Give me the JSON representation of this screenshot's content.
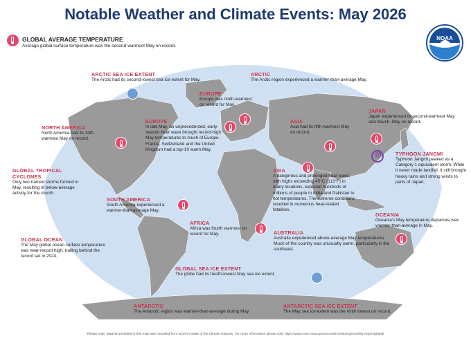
{
  "title": "Notable Weather and Climate Events: May 2026",
  "logo_text": "NOAA",
  "global_avg": {
    "heading": "GLOBAL AVERAGE TEMPERATURE",
    "text": "Average global surface temperature was the second-warmest May on record."
  },
  "labels": {
    "arctic_sea_ice": {
      "heading": "ARCTIC SEA ICE EXTENT",
      "text": "The Arctic had its second-lowest sea ice extent for May."
    },
    "arctic": {
      "heading": "ARCTIC",
      "text": "The Arctic region experienced a warmer-than-average May."
    },
    "europe_top": {
      "heading": "EUROPE",
      "text": "Europe was ninth-warmest on record for May."
    },
    "europe_heat": {
      "heading": "EUROPE",
      "text": "In late May, an unprecedented, early-season heat wave brought record-high May temperatures to much of Europe. France, Switzerland and the United Kingdom had a top-10 warm May."
    },
    "north_america": {
      "heading": "NORTH AMERICA",
      "text": "North America had its 10th-warmest May on record."
    },
    "asia_top": {
      "heading": "ASIA",
      "text": "Asia had its fifth-warmest May on record."
    },
    "japan": {
      "heading": "JAPAN",
      "text": "Japan experienced its second-warmest May and March–May on record."
    },
    "typhoon": {
      "heading": "TYPHOON JANGMI",
      "text": "Typhoon Jangmi peaked as a Category 1 equivalent storm. While it never made landfall, it still brought heavy rains and strong winds to parts of Japan."
    },
    "tropical": {
      "heading": "GLOBAL TROPICAL CYCLONES",
      "text": "Only two named storms formed in May, resulting in below-average activity for the month."
    },
    "asia_heat": {
      "heading": "ASIA",
      "text": "A dangerous and prolonged heat wave, with highs exceeding 45°C (113°F) in many locations, exposed hundreds of millions of people in India and Pakistan to hot temperatures. The extreme conditions resulted in numerous heat-related fatalities."
    },
    "south_america": {
      "heading": "SOUTH AMERICA",
      "text": "South America experienced a warmer-than-average May."
    },
    "africa": {
      "heading": "AFRICA",
      "text": "Africa was fourth warmest on record for May."
    },
    "oceania": {
      "heading": "OCEANIA",
      "text": "Oceania's May temperature departure was warmer-than-average in May."
    },
    "global_ocean": {
      "heading": "GLOBAL OCEAN",
      "text": "The May global ocean surface temperature was near-record high, trailing behind the record set in 2024."
    },
    "australia": {
      "heading": "AUSTRALIA",
      "text": "Australia experienced above-average May temperatures. Much of the country was unusually warm, particularly in the southeast."
    },
    "global_sea_ice": {
      "heading": "GLOBAL SEA ICE EXTENT",
      "text": "The globe had its fourth-lowest May sea ice extent."
    },
    "antarctic": {
      "heading": "ANTARCTIC",
      "text": "The Antarctic region was warmer-than-average during May."
    },
    "antarctic_sea_ice": {
      "heading": "ANTARCTIC SEA ICE EXTENT",
      "text": "The May sea ice extent was the ninth lowest on record."
    }
  },
  "footer": "Please note: Material provided in this map was compiled from NOAA's State of the Climate Reports. For more information please visit: https://www.ncei.noaa.gov/access/monitoring/monthly-report/global/",
  "colors": {
    "ocean": "#cfe0f3",
    "land": "#9a9a9a",
    "accent": "#e5486a",
    "heading": "#c8334e",
    "title": "#1f3a70",
    "ice": "#6e9fd4",
    "typhoon": "#7b3fa0"
  }
}
